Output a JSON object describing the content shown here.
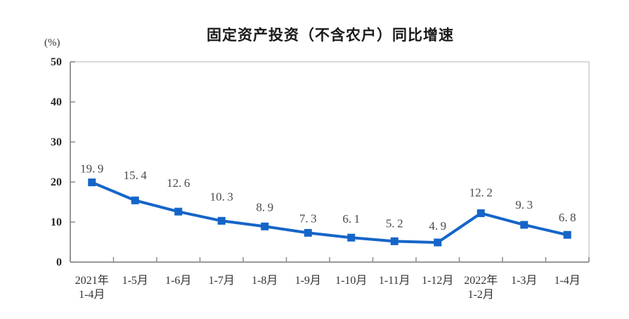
{
  "chart_data": {
    "type": "line",
    "title": "固定资产投资（不含农户）同比增速",
    "unit_label": "(%)",
    "categories": [
      "2021年\n1-4月",
      "1-5月",
      "1-6月",
      "1-7月",
      "1-8月",
      "1-9月",
      "1-10月",
      "1-11月",
      "1-12月",
      "2022年\n1-2月",
      "1-3月",
      "1-4月"
    ],
    "values": [
      19.9,
      15.4,
      12.6,
      10.3,
      8.9,
      7.3,
      6.1,
      5.2,
      4.9,
      12.2,
      9.3,
      6.8
    ],
    "ylim": [
      0,
      50
    ],
    "yticks": [
      0,
      10,
      20,
      30,
      40,
      50
    ],
    "grid": false,
    "legend": "none",
    "data_labels": true,
    "marker_shape": "square",
    "colors": {
      "line": "#1565c8",
      "marker": "#1565c8",
      "data_label_text": "#4a4a4a",
      "axis_line": "#8c8c8c",
      "plot_border": "#d9d9d9",
      "ytick_text": "#262626",
      "xtick_text": "#333333",
      "title_text": "#1a1a1a"
    }
  }
}
